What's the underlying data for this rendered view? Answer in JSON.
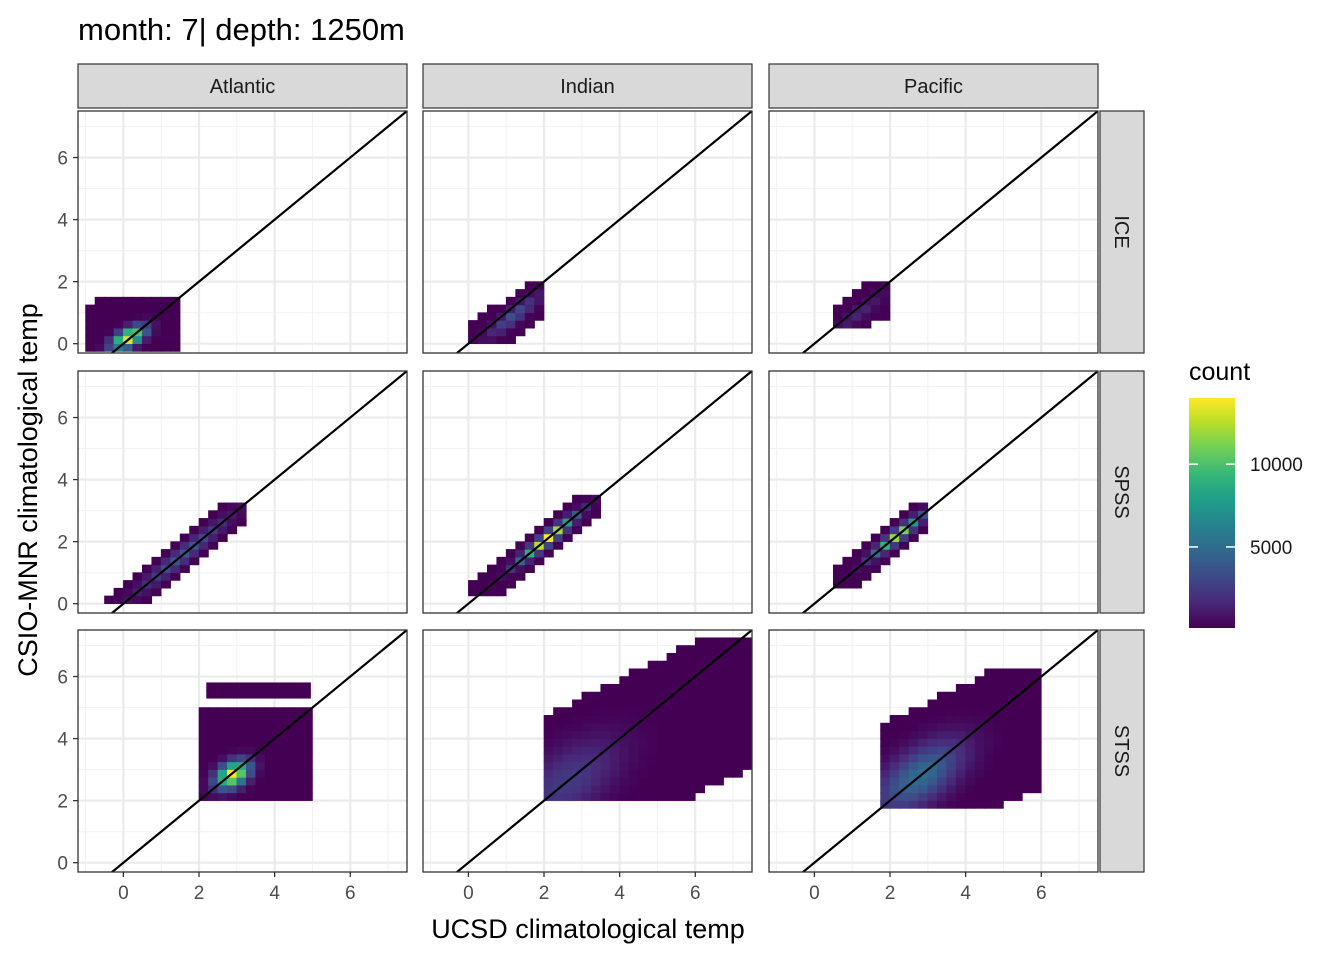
{
  "title": "month: 7| depth: 1250m",
  "chart_data": {
    "type": "heatmap",
    "description": "2D binned count (bin2d) of CSIO-MNR vs UCSD climatological temp, faceted by basin (columns) and region (rows), with identity line y = x",
    "xlabel": "UCSD climatological temp",
    "ylabel": "CSIO-MNR climatological temp",
    "xlim": [
      -1.2,
      7.5
    ],
    "ylim": [
      -0.3,
      7.5
    ],
    "x_ticks": [
      0,
      2,
      4,
      6
    ],
    "y_ticks": [
      0,
      2,
      4,
      6
    ],
    "grid": true,
    "reference_line": "y = x",
    "columns": [
      "Atlantic",
      "Indian",
      "Pacific"
    ],
    "rows": [
      "ICE",
      "SPSS",
      "STSS"
    ],
    "bin_width": 0.25,
    "legend": {
      "title": "count",
      "position": "right",
      "ticks": [
        5000,
        10000
      ],
      "min": 100,
      "max": 14000,
      "colors": [
        "#440154",
        "#482878",
        "#3e4989",
        "#31688e",
        "#26828e",
        "#1f9e89",
        "#35b779",
        "#6ece58",
        "#b5de2b",
        "#fde725"
      ]
    },
    "panels": [
      {
        "column": "Atlantic",
        "row": "ICE",
        "x_range": [
          -0.8,
          1.3
        ],
        "y_range": [
          -0.1,
          1.4
        ],
        "peak": [
          0.15,
          0.2
        ],
        "spread": [
          0.3,
          0.25
        ],
        "max_count": 14000,
        "rho": 0.6
      },
      {
        "column": "Indian",
        "row": "ICE",
        "x_range": [
          0.2,
          2.0
        ],
        "y_range": [
          0.0,
          2.0
        ],
        "peak": [
          1.2,
          0.9
        ],
        "spread": [
          0.45,
          0.45
        ],
        "max_count": 3500,
        "rho": 0.9
      },
      {
        "column": "Pacific",
        "row": "ICE",
        "x_range": [
          0.5,
          2.0
        ],
        "y_range": [
          0.5,
          2.0
        ],
        "peak": [
          1.2,
          1.0
        ],
        "spread": [
          0.45,
          0.45
        ],
        "max_count": 1500,
        "rho": 0.9
      },
      {
        "column": "Atlantic",
        "row": "SPSS",
        "x_range": [
          -0.6,
          3.2
        ],
        "y_range": [
          0.0,
          3.2
        ],
        "peak": [
          1.6,
          1.6
        ],
        "spread": [
          0.8,
          0.8
        ],
        "max_count": 4000,
        "rho": 0.97
      },
      {
        "column": "Indian",
        "row": "SPSS",
        "x_range": [
          0.1,
          3.3
        ],
        "y_range": [
          0.3,
          3.3
        ],
        "peak": [
          2.1,
          2.1
        ],
        "spread": [
          0.5,
          0.5
        ],
        "max_count": 14000,
        "rho": 0.96
      },
      {
        "column": "Pacific",
        "row": "SPSS",
        "x_range": [
          0.5,
          3.0
        ],
        "y_range": [
          0.5,
          3.2
        ],
        "peak": [
          2.2,
          2.2
        ],
        "spread": [
          0.45,
          0.45
        ],
        "max_count": 12000,
        "rho": 0.95
      },
      {
        "column": "Atlantic",
        "row": "STSS",
        "x_range": [
          2.0,
          4.8
        ],
        "y_range": [
          2.2,
          4.8
        ],
        "peak": [
          2.9,
          2.85
        ],
        "spread": [
          0.3,
          0.3
        ],
        "max_count": 14000,
        "rho": 0.4,
        "extra_band": {
          "x_range": [
            2.2,
            4.8
          ],
          "y_range": [
            5.3,
            5.6
          ]
        }
      },
      {
        "column": "Indian",
        "row": "STSS",
        "x_range": [
          2.0,
          7.3
        ],
        "y_range": [
          2.1,
          7.2
        ],
        "peak": [
          2.6,
          2.6
        ],
        "spread": [
          1.0,
          1.0
        ],
        "max_count": 2500,
        "rho": 0.6
      },
      {
        "column": "Pacific",
        "row": "STSS",
        "x_range": [
          1.8,
          6.0
        ],
        "y_range": [
          1.9,
          6.1
        ],
        "peak": [
          2.8,
          2.8
        ],
        "spread": [
          0.8,
          0.8
        ],
        "max_count": 5000,
        "rho": 0.6
      }
    ]
  }
}
